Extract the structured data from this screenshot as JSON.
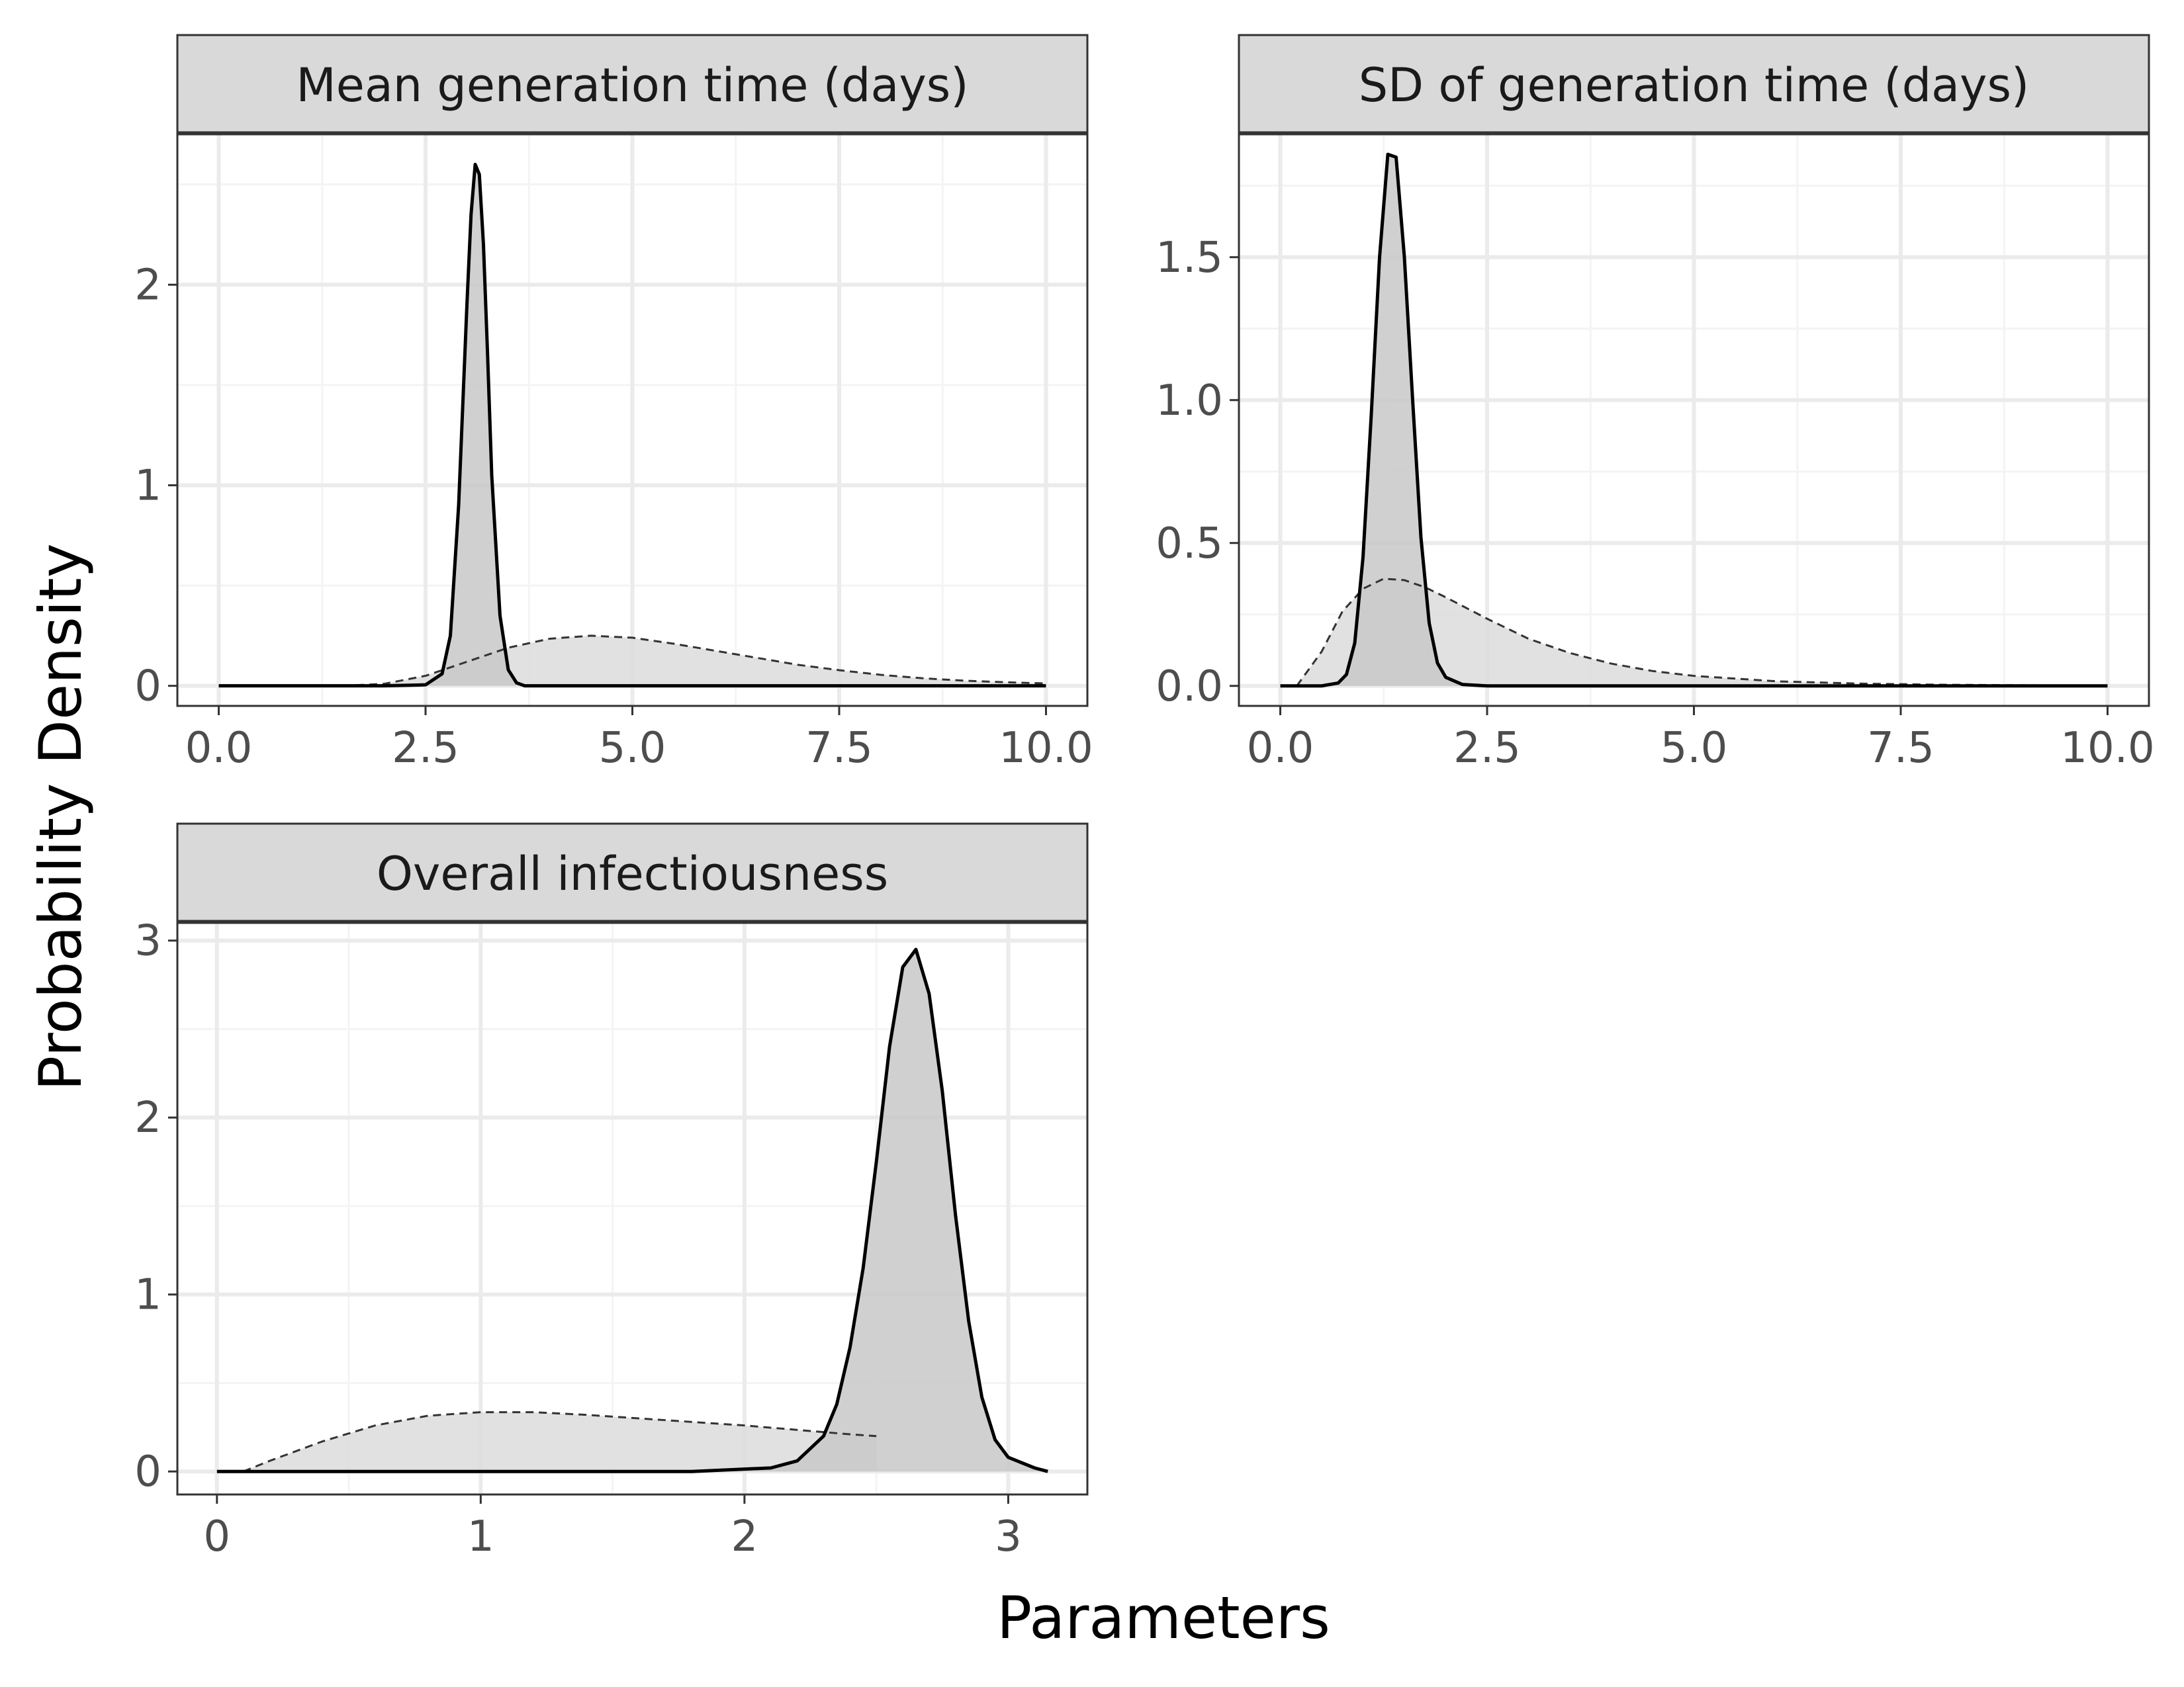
{
  "figure": {
    "ylabel": "Probability Density",
    "xlabel": "Parameters"
  },
  "colors": {
    "panel_border": "#333333",
    "strip_fill": "#d9d9d9",
    "grid_major": "#ebebeb",
    "grid_minor": "#f4f4f4",
    "posterior_fill": "#c8c8c8",
    "prior_fill": "#dcdcdc",
    "posterior_line": "#000000",
    "prior_line": "#333333"
  },
  "chart_data": [
    {
      "type": "area",
      "title": "Mean generation time (days)",
      "xlim": [
        -0.5,
        10.5
      ],
      "ylim": [
        -0.1,
        2.75
      ],
      "xticks": [
        0,
        2.5,
        5,
        7.5,
        10
      ],
      "xtick_labels": [
        "0.0",
        "2.5",
        "5.0",
        "7.5",
        "10.0"
      ],
      "yticks": [
        0,
        1,
        2
      ],
      "ytick_labels": [
        "0",
        "1",
        "2"
      ],
      "grid": true,
      "series": [
        {
          "role": "posterior",
          "style": "solid",
          "x": [
            0,
            2.0,
            2.5,
            2.7,
            2.8,
            2.9,
            3.0,
            3.05,
            3.1,
            3.15,
            3.2,
            3.25,
            3.3,
            3.4,
            3.5,
            3.6,
            3.7,
            4.0,
            6.0,
            10.0
          ],
          "y": [
            0,
            0,
            0.005,
            0.06,
            0.25,
            0.9,
            1.9,
            2.35,
            2.6,
            2.55,
            2.2,
            1.65,
            1.05,
            0.35,
            0.08,
            0.015,
            0,
            0,
            0,
            0
          ]
        },
        {
          "role": "prior",
          "style": "dashed",
          "x": [
            1.5,
            2.0,
            2.5,
            3.0,
            3.5,
            4.0,
            4.5,
            5.0,
            5.5,
            6.0,
            6.5,
            7.0,
            7.5,
            8.0,
            8.5,
            9.0,
            9.5,
            10.0
          ],
          "y": [
            0,
            0.01,
            0.05,
            0.12,
            0.19,
            0.235,
            0.25,
            0.24,
            0.21,
            0.175,
            0.14,
            0.105,
            0.078,
            0.055,
            0.038,
            0.026,
            0.018,
            0.012
          ]
        }
      ]
    },
    {
      "type": "area",
      "title": "SD of generation time (days)",
      "xlim": [
        -0.5,
        10.5
      ],
      "ylim": [
        -0.07,
        1.93
      ],
      "xticks": [
        0,
        2.5,
        5,
        7.5,
        10
      ],
      "xtick_labels": [
        "0.0",
        "2.5",
        "5.0",
        "7.5",
        "10.0"
      ],
      "yticks": [
        0,
        0.5,
        1.0,
        1.5
      ],
      "ytick_labels": [
        "0.0",
        "0.5",
        "1.0",
        "1.5"
      ],
      "grid": true,
      "series": [
        {
          "role": "posterior",
          "style": "solid",
          "x": [
            0,
            0.5,
            0.7,
            0.8,
            0.9,
            1.0,
            1.1,
            1.2,
            1.3,
            1.4,
            1.5,
            1.6,
            1.7,
            1.8,
            1.9,
            2.0,
            2.2,
            2.5,
            5.0,
            10.0
          ],
          "y": [
            0,
            0,
            0.01,
            0.04,
            0.15,
            0.45,
            0.95,
            1.5,
            1.86,
            1.85,
            1.5,
            1.0,
            0.52,
            0.22,
            0.08,
            0.03,
            0.005,
            0,
            0,
            0
          ]
        },
        {
          "role": "prior",
          "style": "dashed",
          "x": [
            0.2,
            0.5,
            0.75,
            1.0,
            1.25,
            1.5,
            1.75,
            2.0,
            2.5,
            3.0,
            3.5,
            4.0,
            4.5,
            5.0,
            6.0,
            7.0,
            8.0,
            9.0,
            10.0
          ],
          "y": [
            0.0,
            0.12,
            0.26,
            0.34,
            0.375,
            0.37,
            0.345,
            0.31,
            0.235,
            0.165,
            0.115,
            0.078,
            0.052,
            0.035,
            0.016,
            0.008,
            0.004,
            0.002,
            0.001
          ]
        }
      ]
    },
    {
      "type": "area",
      "title": "Overall infectiousness",
      "xlim": [
        -0.15,
        3.3
      ],
      "ylim": [
        -0.13,
        3.1
      ],
      "xticks": [
        0,
        1,
        2,
        3
      ],
      "xtick_labels": [
        "0",
        "1",
        "2",
        "3"
      ],
      "yticks": [
        0,
        1,
        2,
        3
      ],
      "ytick_labels": [
        "0",
        "1",
        "2",
        "3"
      ],
      "grid": true,
      "series": [
        {
          "role": "posterior",
          "style": "solid",
          "x": [
            0,
            1.8,
            2.1,
            2.2,
            2.3,
            2.35,
            2.4,
            2.45,
            2.5,
            2.55,
            2.6,
            2.65,
            2.7,
            2.75,
            2.8,
            2.85,
            2.9,
            2.95,
            3.0,
            3.1,
            3.15
          ],
          "y": [
            0,
            0,
            0.02,
            0.06,
            0.2,
            0.38,
            0.7,
            1.15,
            1.75,
            2.4,
            2.85,
            2.95,
            2.7,
            2.15,
            1.45,
            0.85,
            0.42,
            0.18,
            0.08,
            0.02,
            0
          ]
        },
        {
          "role": "prior",
          "style": "dashed",
          "x": [
            0.1,
            0.2,
            0.4,
            0.6,
            0.8,
            1.0,
            1.2,
            1.4,
            1.6,
            1.8,
            2.0,
            2.2,
            2.4,
            2.5
          ],
          "y": [
            0.0,
            0.06,
            0.17,
            0.26,
            0.315,
            0.335,
            0.335,
            0.32,
            0.3,
            0.28,
            0.26,
            0.235,
            0.21,
            0.2
          ]
        }
      ]
    }
  ]
}
